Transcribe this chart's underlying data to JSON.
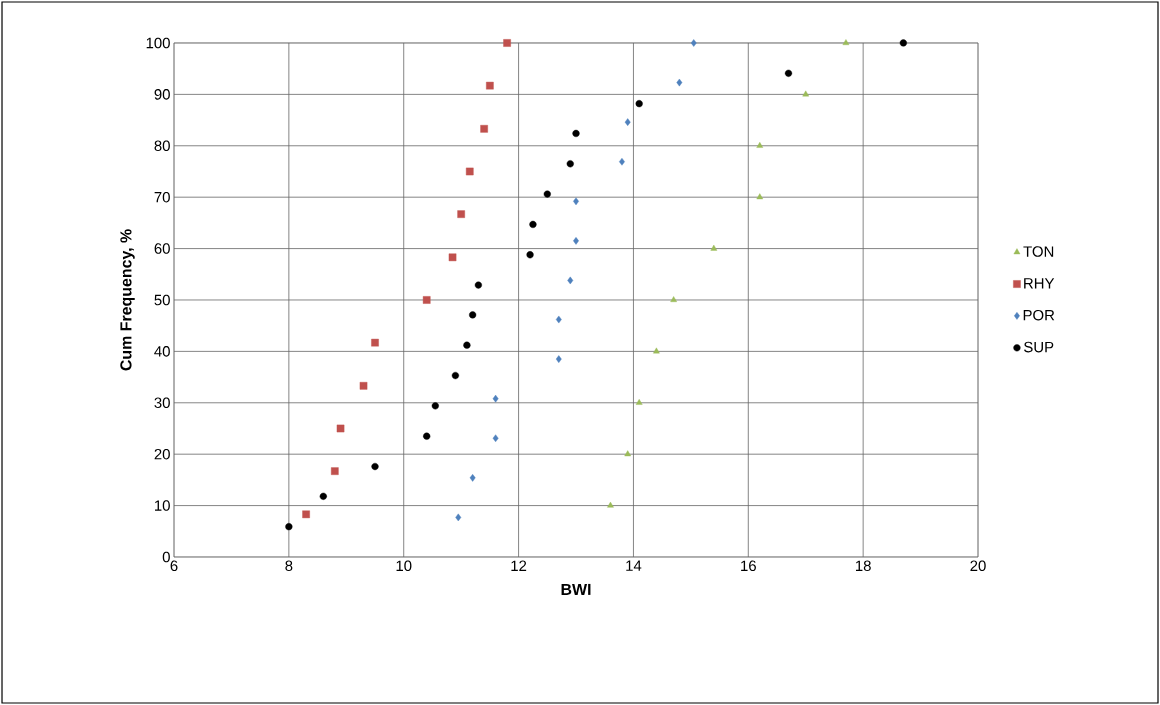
{
  "chart_data": {
    "type": "scatter",
    "xlabel": "BWI",
    "ylabel": "Cum Frequency, %",
    "xlim": [
      6,
      20
    ],
    "xticks": [
      6,
      8,
      10,
      12,
      14,
      16,
      18,
      20
    ],
    "ylim": [
      0,
      100
    ],
    "yticks": [
      0,
      10,
      20,
      30,
      40,
      50,
      60,
      70,
      80,
      90,
      100
    ],
    "grid": true,
    "legend": "right",
    "series": [
      {
        "name": "TON",
        "color": "#9bbb59",
        "marker": "triangle",
        "x": [
          17.7,
          17.0,
          16.2,
          16.2,
          15.4,
          14.7,
          14.4,
          14.1,
          13.9,
          13.6
        ],
        "values": [
          100,
          90,
          80,
          70,
          60,
          50,
          40,
          30,
          20,
          10
        ]
      },
      {
        "name": "RHY",
        "color": "#c0504d",
        "marker": "square",
        "x": [
          11.8,
          11.5,
          11.4,
          11.15,
          11.0,
          10.85,
          10.4,
          9.5,
          9.3,
          8.9,
          8.8,
          8.3
        ],
        "values": [
          100,
          91.7,
          83.3,
          75,
          66.7,
          58.3,
          50,
          41.7,
          33.3,
          25,
          16.7,
          8.3
        ]
      },
      {
        "name": "POR",
        "color": "#4f81bd",
        "marker": "diamond",
        "x": [
          15.05,
          14.8,
          13.9,
          13.8,
          13.0,
          13.0,
          12.9,
          12.7,
          12.7,
          11.6,
          11.6,
          11.2,
          10.95
        ],
        "values": [
          100,
          92.3,
          84.6,
          76.9,
          69.2,
          61.5,
          53.8,
          46.2,
          38.5,
          30.8,
          23.1,
          15.4,
          7.7
        ]
      },
      {
        "name": "SUP",
        "color": "#000000",
        "marker": "circle",
        "x": [
          18.7,
          16.7,
          14.1,
          13.0,
          12.9,
          12.5,
          12.25,
          12.2,
          11.3,
          11.2,
          11.1,
          10.9,
          10.55,
          10.4,
          9.5,
          8.6,
          8.0
        ],
        "values": [
          100,
          94.1,
          88.2,
          82.4,
          76.5,
          70.6,
          64.7,
          58.8,
          52.9,
          47.1,
          41.2,
          35.3,
          29.4,
          23.5,
          17.6,
          11.8,
          5.9
        ]
      }
    ]
  }
}
